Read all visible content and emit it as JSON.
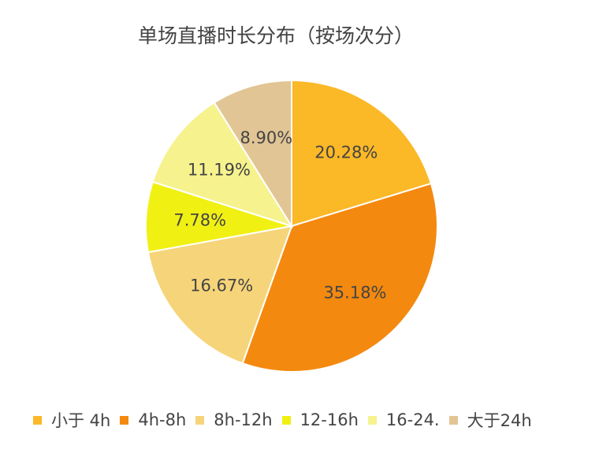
{
  "chart_data": {
    "type": "pie",
    "title": "单场直播时长分布（按场次分）",
    "categories": [
      "小于 4h",
      "4h-8h",
      "8h-12h",
      "12-16h",
      "16-24.",
      "大于24h"
    ],
    "values": [
      20.28,
      35.18,
      16.67,
      7.78,
      11.19,
      8.9
    ],
    "value_labels": [
      "20.28%",
      "35.18%",
      "16.67%",
      "7.78%",
      "11.19%",
      "8.90%"
    ],
    "colors": [
      "#FBB827",
      "#F4890F",
      "#F6D479",
      "#F1F013",
      "#F6F28E",
      "#E2C594"
    ],
    "legend_position": "bottom"
  }
}
